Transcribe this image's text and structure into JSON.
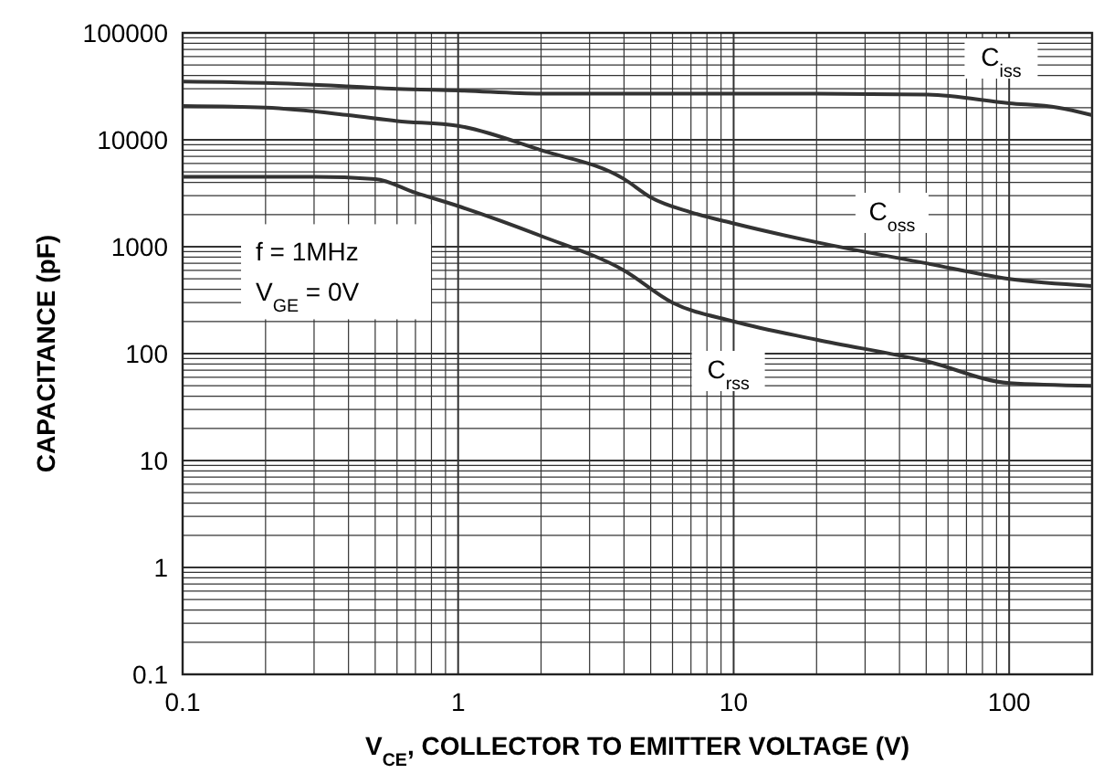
{
  "chart_data": {
    "type": "line",
    "xlabel": "V$_{CE}$, COLLECTOR TO EMITTER VOLTAGE (V)",
    "ylabel": "CAPACITANCE (pF)",
    "log": "xy",
    "grid": true,
    "marker": "none",
    "line_style": "solid",
    "xlim": [
      0.1,
      200
    ],
    "xticks": [
      0.1,
      1,
      10,
      100
    ],
    "ylim": [
      0.1,
      100000
    ],
    "yticks": [
      0.1,
      1,
      10,
      100,
      1000,
      10000,
      100000
    ],
    "series": [
      {
        "name": "C$_{iss}$",
        "color": "#333333",
        "x": [
          0.1,
          0.2,
          0.4,
          0.6,
          1,
          2,
          5,
          10,
          20,
          50,
          100,
          150,
          200
        ],
        "values": [
          35000,
          34000,
          31600,
          30000,
          29000,
          27000,
          27000,
          27000,
          27000,
          26500,
          22000,
          20000,
          17000
        ]
      },
      {
        "name": "C$_{oss}$",
        "color": "#333333",
        "x": [
          0.1,
          0.2,
          0.4,
          0.6,
          1,
          2,
          4,
          5,
          7,
          10,
          20,
          50,
          100,
          200
        ],
        "values": [
          20700,
          20000,
          17000,
          15000,
          13500,
          8000,
          4300,
          2900,
          2100,
          1650,
          1100,
          700,
          500,
          430
        ]
      },
      {
        "name": "C$_{rss}$",
        "color": "#333333",
        "x": [
          0.1,
          0.3,
          0.5,
          0.7,
          1,
          2,
          4,
          6,
          10,
          20,
          50,
          100,
          200
        ],
        "values": [
          4500,
          4500,
          4300,
          3200,
          2400,
          1260,
          600,
          300,
          200,
          135,
          85,
          53,
          50
        ]
      }
    ],
    "annotations": [
      "f = 1MHz",
      "V$_{GE}$ = 0V"
    ]
  }
}
